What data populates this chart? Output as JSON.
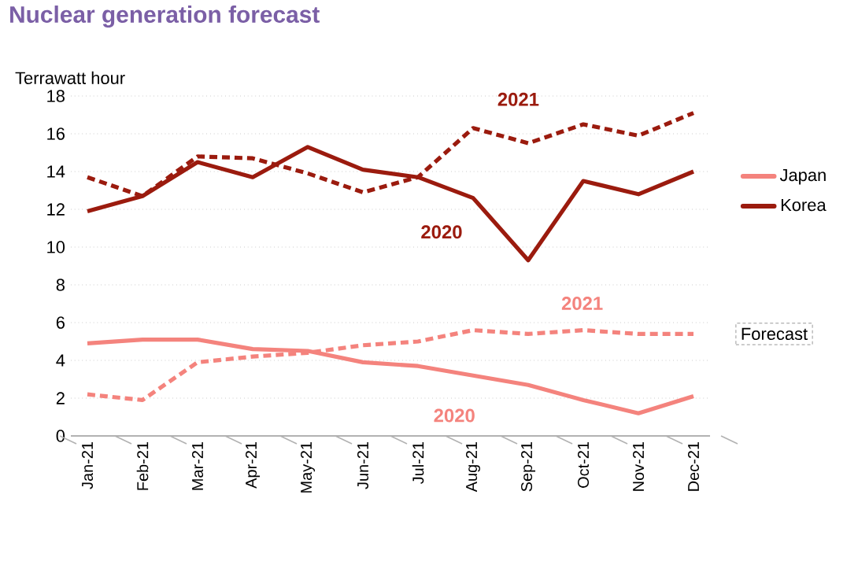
{
  "chart_data": {
    "type": "line",
    "title": "Nuclear generation forecast",
    "ylabel": "Terrawatt hour",
    "categories": [
      "Jan-21",
      "Feb-21",
      "Mar-21",
      "Apr-21",
      "May-21",
      "Jun-21",
      "Jul-21",
      "Aug-21",
      "Sep-21",
      "Oct-21",
      "Nov-21",
      "Dec-21"
    ],
    "series": [
      {
        "name": "Japan",
        "color": "#f4837d",
        "line_style": "solid",
        "values": [
          4.9,
          5.1,
          5.1,
          4.6,
          4.5,
          3.9,
          3.7,
          3.2,
          2.7,
          1.9,
          1.2,
          2.1
        ]
      },
      {
        "name": "Korea",
        "color": "#9b1b0e",
        "line_style": "solid",
        "values": [
          11.9,
          12.7,
          14.5,
          13.7,
          15.3,
          14.1,
          13.7,
          12.6,
          9.3,
          13.5,
          12.8,
          14.0
        ]
      },
      {
        "color": "#f4837d",
        "line_style": "dashed",
        "values": [
          2.2,
          1.9,
          3.9,
          4.2,
          4.4,
          4.8,
          5.0,
          5.6,
          5.4,
          5.6,
          5.4,
          5.4
        ]
      },
      {
        "color": "#9b1b0e",
        "line_style": "dashed",
        "values": [
          13.7,
          12.7,
          14.8,
          14.7,
          13.9,
          12.9,
          13.7,
          16.3,
          15.5,
          16.5,
          15.9,
          17.1
        ]
      }
    ],
    "ylim": [
      0,
      18
    ],
    "yticks": [
      0,
      2,
      4,
      6,
      8,
      10,
      12,
      14,
      16,
      18
    ],
    "grid": "y",
    "legend": "right",
    "annotations": [
      "2021",
      "2020",
      "2021",
      "2020",
      "Forecast"
    ]
  }
}
